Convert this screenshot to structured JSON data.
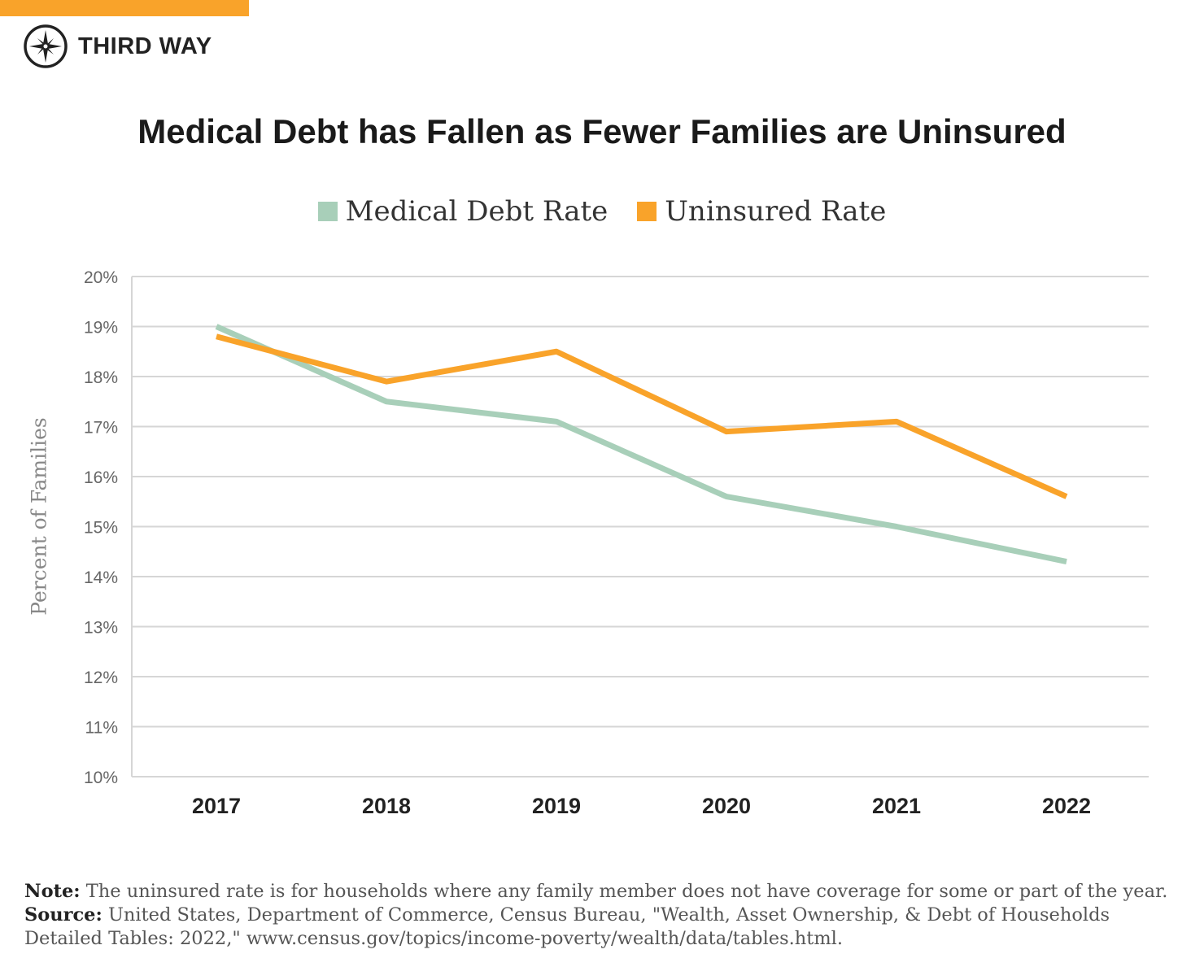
{
  "brand": {
    "name": "THIRD WAY",
    "bar_color": "#f9a32a"
  },
  "chart_data": {
    "type": "line",
    "title": "Medical Debt has Fallen as Fewer Families are Uninsured",
    "ylabel": "Percent of Families",
    "xlabel": "",
    "categories": [
      "2017",
      "2018",
      "2019",
      "2020",
      "2021",
      "2022"
    ],
    "ylim": [
      10,
      20
    ],
    "yticks": [
      "10%",
      "11%",
      "12%",
      "13%",
      "14%",
      "15%",
      "16%",
      "17%",
      "18%",
      "19%",
      "20%"
    ],
    "grid": true,
    "legend_position": "top",
    "series": [
      {
        "name": "Medical Debt Rate",
        "color": "#a8cfb9",
        "values": [
          19.0,
          17.5,
          17.1,
          15.6,
          15.0,
          14.3
        ]
      },
      {
        "name": "Uninsured Rate",
        "color": "#f9a32a",
        "values": [
          18.8,
          17.9,
          18.5,
          16.9,
          17.1,
          15.6
        ]
      }
    ]
  },
  "notes": {
    "note_label": "Note:",
    "note_text": " The uninsured rate is for households where any family member does not have coverage for some or part of the year.",
    "source_label": "Source:",
    "source_text": " United States, Department of Commerce, Census Bureau, \"Wealth, Asset Ownership, & Debt of Households Detailed Tables: 2022,\" www.census.gov/topics/income-poverty/wealth/data/tables.html."
  }
}
